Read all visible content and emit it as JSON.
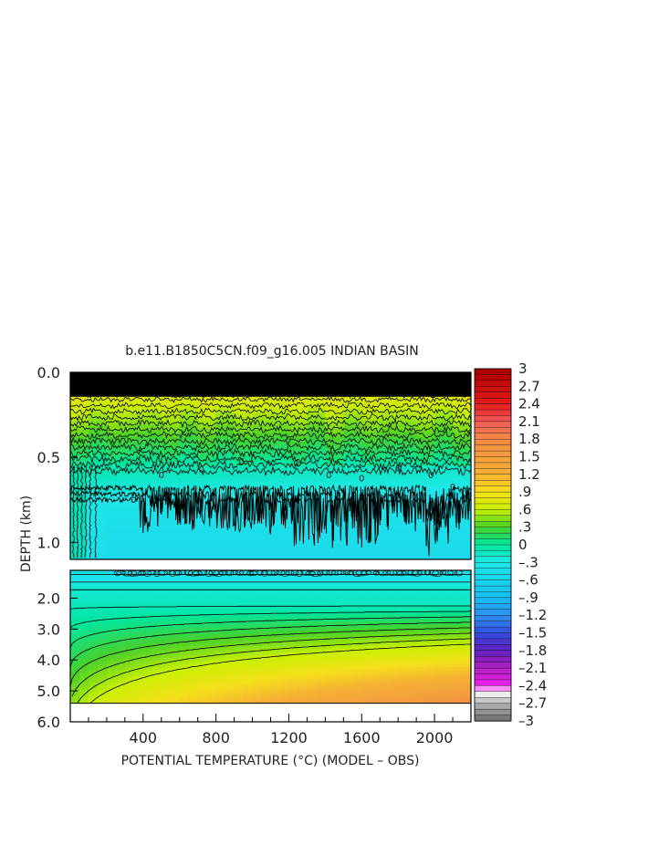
{
  "chart_data": {
    "type": "heatmap",
    "title": "b.e11.B1850C5CN.f09_g16.005 INDIAN BASIN",
    "xlabel": "POTENTIAL TEMPERATURE (°C) (MODEL – OBS)",
    "ylabel": "DEPTH (km)",
    "xlim": [
      0,
      2200
    ],
    "x_ticks": [
      400,
      800,
      1200,
      1600,
      2000
    ],
    "x_tick_labels": [
      "400",
      "800",
      "1200",
      "1600",
      "2000"
    ],
    "upper_panel": {
      "ylim": [
        0.0,
        1.1
      ],
      "y_ticks": [
        0.0,
        0.5,
        1.0
      ],
      "y_tick_labels": [
        "0.0",
        "0.5",
        "1.0"
      ],
      "contour_labels": [
        "0",
        "0",
        "0",
        "0",
        "0",
        "0",
        "0",
        "0",
        "0",
        "0",
        "0"
      ]
    },
    "lower_panel": {
      "ylim": [
        1.1,
        6.0
      ],
      "y_ticks": [
        2.0,
        3.0,
        4.0,
        5.0,
        6.0
      ],
      "y_tick_labels": [
        "2.0",
        "3.0",
        "4.0",
        "5.0",
        "6.0"
      ]
    },
    "colorbar": {
      "range": [
        -3,
        3
      ],
      "labels": [
        "3",
        "2.7",
        "2.4",
        "2.1",
        "1.8",
        "1.5",
        "1.2",
        ".9",
        ".6",
        ".3",
        "0",
        "–.3",
        "–.6",
        "–.9",
        "–1.2",
        "–1.5",
        "–1.8",
        "–2.1",
        "–2.4",
        "–2.7",
        "–3"
      ],
      "label_values": [
        3,
        2.7,
        2.4,
        2.1,
        1.8,
        1.5,
        1.2,
        0.9,
        0.6,
        0.3,
        0,
        -0.3,
        -0.6,
        -0.9,
        -1.2,
        -1.5,
        -1.8,
        -2.1,
        -2.4,
        -2.7,
        -3
      ],
      "color_stops": [
        {
          "v": 3.0,
          "c": "#a80000"
        },
        {
          "v": 2.4,
          "c": "#e61a1a"
        },
        {
          "v": 2.1,
          "c": "#f05a5a"
        },
        {
          "v": 1.8,
          "c": "#f28a44"
        },
        {
          "v": 1.2,
          "c": "#f5b035"
        },
        {
          "v": 0.9,
          "c": "#f5e01a"
        },
        {
          "v": 0.6,
          "c": "#c8f000"
        },
        {
          "v": 0.3,
          "c": "#48d12a"
        },
        {
          "v": 0.0,
          "c": "#00e6a0"
        },
        {
          "v": -0.3,
          "c": "#1fe8e8"
        },
        {
          "v": -0.9,
          "c": "#14bef0"
        },
        {
          "v": -1.2,
          "c": "#3090f0"
        },
        {
          "v": -1.5,
          "c": "#3050e0"
        },
        {
          "v": -1.8,
          "c": "#6020c0"
        },
        {
          "v": -2.1,
          "c": "#b020c0"
        },
        {
          "v": -2.4,
          "c": "#f020f0"
        },
        {
          "v": -2.5,
          "c": "#ffffff"
        },
        {
          "v": -2.7,
          "c": "#b4b4b4"
        },
        {
          "v": -3.0,
          "c": "#6e6e6e"
        }
      ]
    }
  }
}
